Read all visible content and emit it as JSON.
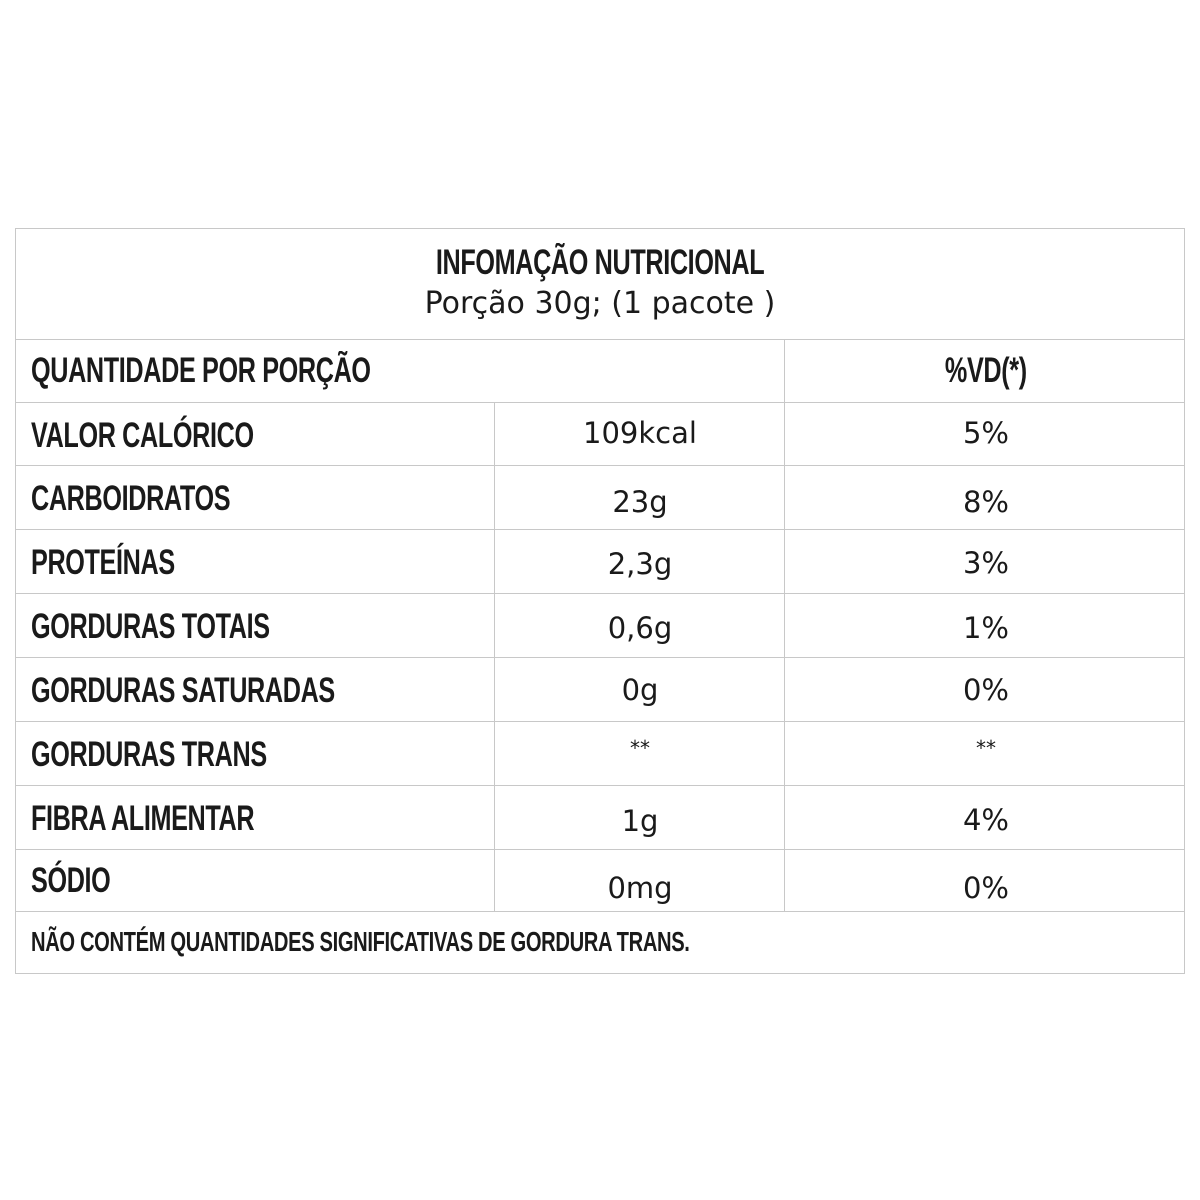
{
  "header": {
    "title": "INFOMAÇÃO NUTRICIONAL",
    "serving": "Porção 30g; (1 pacote )"
  },
  "columns": {
    "quantity": "QUANTIDADE POR PORÇÃO",
    "dv": "%VD(*)"
  },
  "rows": [
    {
      "name": "VALOR CALÓRICO",
      "amount": "109kcal",
      "dv": "5%"
    },
    {
      "name": "CARBOIDRATOS",
      "amount": "23g",
      "dv": "8%"
    },
    {
      "name": "PROTEÍNAS",
      "amount": "2,3g",
      "dv": "3%"
    },
    {
      "name": "GORDURAS TOTAIS",
      "amount": "0,6g",
      "dv": "1%"
    },
    {
      "name": "GORDURAS SATURADAS",
      "amount": "0g",
      "dv": "0%"
    },
    {
      "name": "GORDURAS TRANS",
      "amount": "**",
      "dv": "**"
    },
    {
      "name": "FIBRA ALIMENTAR",
      "amount": "1g",
      "dv": "4%"
    },
    {
      "name": "SÓDIO",
      "amount": "0mg",
      "dv": "0%"
    }
  ],
  "footnote": "NÃO CONTÉM QUANTIDADES SIGNIFICATIVAS DE GORDURA TRANS."
}
